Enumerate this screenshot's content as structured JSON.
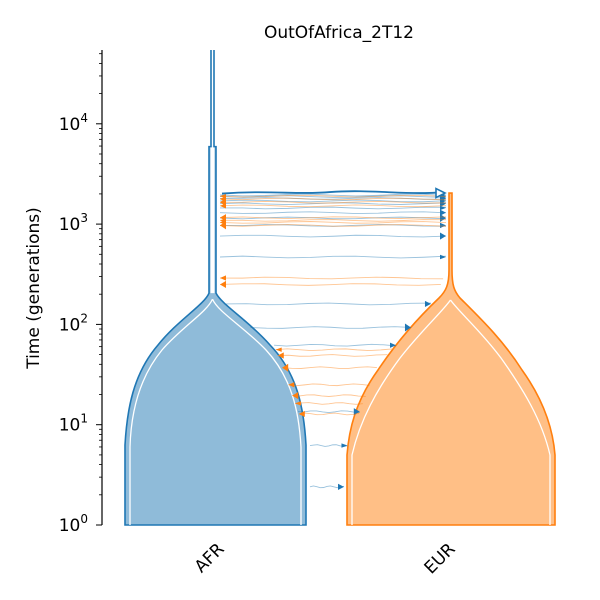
{
  "title": "OutOfAfrica_2T12",
  "y_axis": {
    "label": "Time (generations)",
    "scale": "log",
    "ticks": [
      {
        "base": "10",
        "exp": "0",
        "value": 1
      },
      {
        "base": "10",
        "exp": "1",
        "value": 10
      },
      {
        "base": "10",
        "exp": "2",
        "value": 100
      },
      {
        "base": "10",
        "exp": "3",
        "value": 1000
      },
      {
        "base": "10",
        "exp": "4",
        "value": 10000
      }
    ]
  },
  "demes": [
    {
      "name": "AFR",
      "color": "#1f77b4",
      "fill": "#8fbbd9"
    },
    {
      "name": "EUR",
      "color": "#ff7f0e",
      "fill": "#ffbf86"
    }
  ],
  "events": {
    "ancestral_expansion_time": 5920,
    "split_time": 2040,
    "bottleneck_end_time": 205
  },
  "migrations": {
    "to_eur_times": [
      1950,
      1880,
      1800,
      1700,
      1600,
      1450,
      1300,
      1150,
      970,
      760,
      470,
      160,
      93,
      62,
      13.5,
      6.2,
      2.4
    ],
    "to_afr_times": [
      1900,
      1780,
      1650,
      1520,
      1160,
      1090,
      1040,
      970,
      290,
      250,
      56,
      49,
      37,
      25,
      19.5,
      16.3,
      12.8
    ]
  }
}
